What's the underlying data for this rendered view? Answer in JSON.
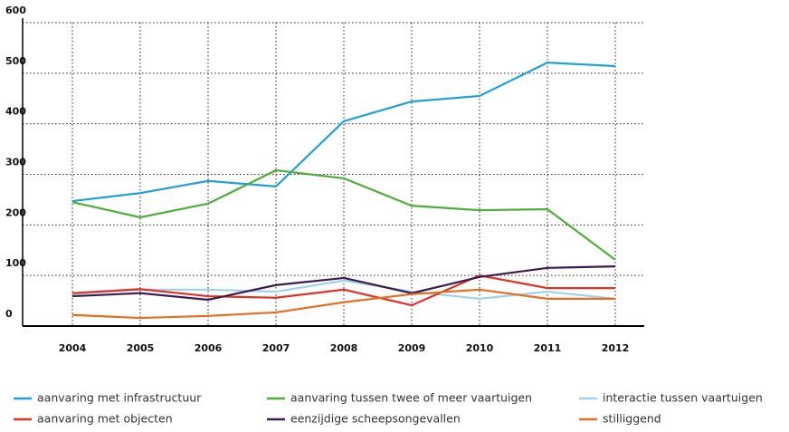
{
  "chart_data": {
    "type": "line",
    "categories": [
      "2004",
      "2005",
      "2006",
      "2007",
      "2008",
      "2009",
      "2010",
      "2011",
      "2012"
    ],
    "ylim": [
      0,
      600
    ],
    "yticks": [
      0,
      100,
      200,
      300,
      400,
      500,
      600
    ],
    "grid": true,
    "legend": "bottom",
    "series": [
      {
        "name": "aanvaring met infrastructuur",
        "color": "#1e9fd9",
        "values": [
          247,
          263,
          287,
          276,
          405,
          444,
          455,
          521,
          514
        ]
      },
      {
        "name": "aanvaring tussen twee of meer vaartuigen",
        "color": "#4fae3a",
        "values": [
          245,
          215,
          242,
          308,
          292,
          238,
          229,
          231,
          131
        ]
      },
      {
        "name": "interactie tussen vaartuigen",
        "color": "#9dd3f0",
        "values": [
          63,
          72,
          72,
          68,
          90,
          68,
          54,
          68,
          54
        ]
      },
      {
        "name": "aanvaring met objecten",
        "color": "#e03127",
        "values": [
          65,
          73,
          59,
          56,
          72,
          41,
          100,
          75,
          75
        ]
      },
      {
        "name": "eenzijdige scheepsongevallen",
        "color": "#3d1a4e",
        "values": [
          59,
          65,
          52,
          81,
          95,
          65,
          97,
          115,
          118
        ]
      },
      {
        "name": "stilliggend",
        "color": "#ec6c1f",
        "values": [
          22,
          16,
          20,
          27,
          47,
          63,
          72,
          54,
          54
        ]
      }
    ]
  }
}
